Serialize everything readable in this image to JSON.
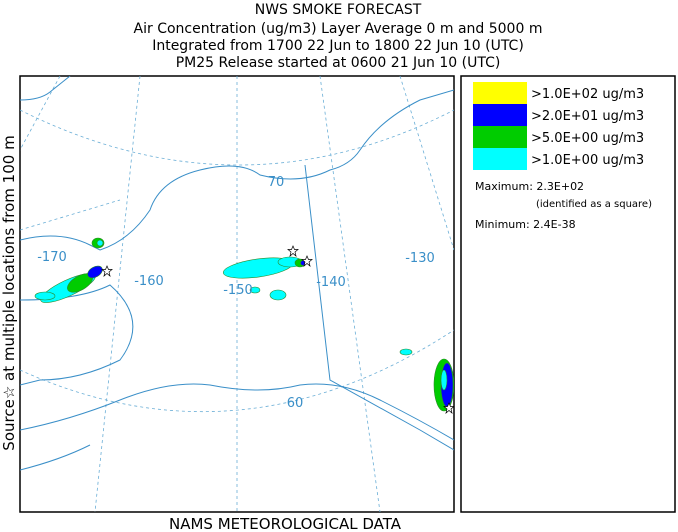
{
  "header": [
    "NWS SMOKE FORECAST",
    "Air Concentration (ug/m3) Layer Average    0 m and  5000 m",
    "Integrated from 1700 22 Jun to 1800 22 Jun 10 (UTC)",
    "PM25 Release started at 0600 21 Jun 10 (UTC)"
  ],
  "side_text": "Source☆ at multiple locations   from   100 m",
  "footer": "NAMS METEOROLOGICAL DATA",
  "map_labels": [
    "-170",
    "-160",
    "-150",
    "-140",
    "-130",
    "70",
    "60"
  ],
  "legend": [
    {
      "label": ">1.0E+02 ug/m3",
      "color": "#ffff00"
    },
    {
      "label": ">2.0E+01 ug/m3",
      "color": "#0000ff"
    },
    {
      "label": ">5.0E+00 ug/m3",
      "color": "#00cc00"
    },
    {
      "label": ">1.0E+00 ug/m3",
      "color": "#00ffff"
    }
  ],
  "stats": {
    "maximum": "Maximum: 2.3E+02",
    "maximum_note": "(identified as a square)",
    "minimum": "Minimum: 2.4E-38"
  }
}
